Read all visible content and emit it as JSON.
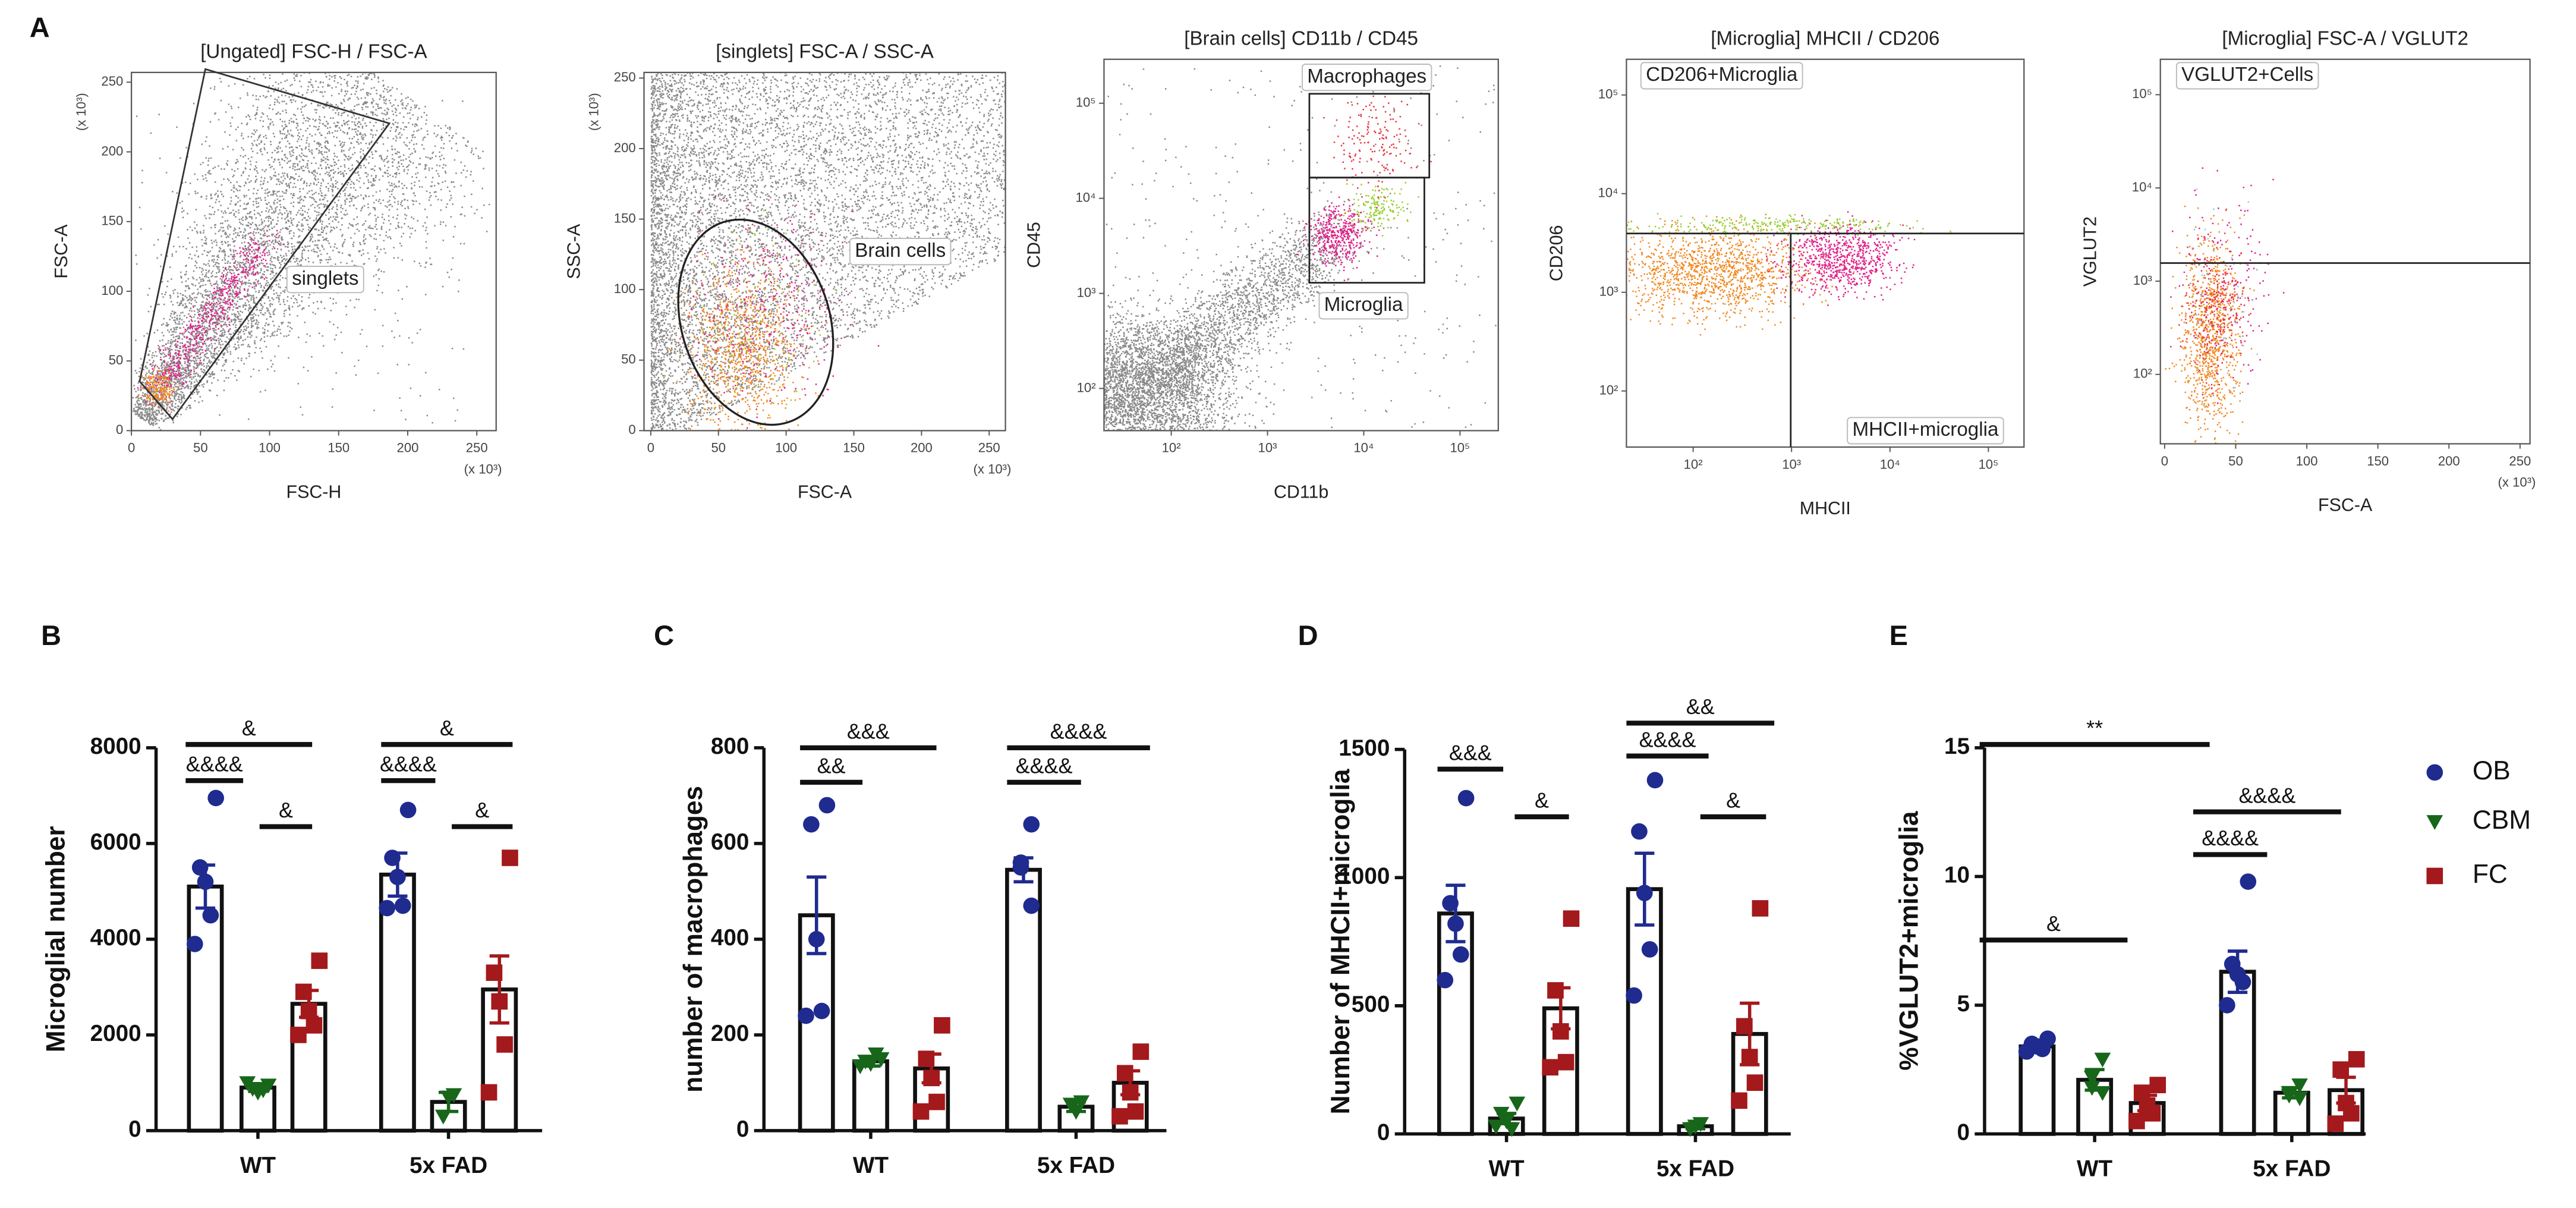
{
  "panel_labels": [
    "A",
    "B",
    "C",
    "D",
    "E"
  ],
  "legend": [
    {
      "name": "OB",
      "color": "#1f2b8f",
      "marker": "circle"
    },
    {
      "name": "CBM",
      "color": "#17661a",
      "marker": "triangle"
    },
    {
      "name": "FC",
      "color": "#a3191c",
      "marker": "square"
    }
  ],
  "chart_data": [
    {
      "type": "flow",
      "title": "[Ungated] FSC-H / FSC-A",
      "xlabel": "FSC-H",
      "ylabel": "FSC-A",
      "xscale": "linear",
      "yscale": "linear",
      "xlim": [
        0,
        264
      ],
      "ylim": [
        0,
        257
      ],
      "xticks": [
        0,
        50,
        100,
        150,
        200,
        250
      ],
      "yticks": [
        0,
        50,
        100,
        150,
        200,
        250
      ],
      "x_unit": "(x 10³)",
      "y_unit": "(x 10³)",
      "gates": [
        "singlets"
      ]
    },
    {
      "type": "flow",
      "title": "[singlets] FSC-A / SSC-A",
      "xlabel": "FSC-A",
      "ylabel": "SSC-A",
      "xscale": "linear",
      "yscale": "linear",
      "xlim": [
        -5,
        262
      ],
      "ylim": [
        0,
        254
      ],
      "xticks": [
        0,
        50,
        100,
        150,
        200,
        250
      ],
      "yticks": [
        0,
        50,
        100,
        150,
        200,
        250
      ],
      "x_unit": "(x 10³)",
      "y_unit": "(x 10³)",
      "gates": [
        "Brain cells"
      ]
    },
    {
      "type": "flow",
      "title": "[Brain cells] CD11b / CD45",
      "xlabel": "CD11b",
      "ylabel": "CD45",
      "xscale": "log",
      "yscale": "log",
      "xlim": [
        20,
        250000
      ],
      "ylim": [
        36,
        290000
      ],
      "xticks": [
        {
          "value": 100,
          "label": "10²"
        },
        {
          "value": 1000,
          "label": "10³"
        },
        {
          "value": 10000,
          "label": "10⁴"
        },
        {
          "value": 100000,
          "label": "10⁵"
        }
      ],
      "yticks": [
        {
          "value": 100,
          "label": "10²"
        },
        {
          "value": 1000,
          "label": "10³"
        },
        {
          "value": 10000,
          "label": "10⁴"
        },
        {
          "value": 100000,
          "label": "10⁵"
        }
      ],
      "gates": [
        "Macrophages",
        "Microglia"
      ]
    },
    {
      "type": "flow",
      "title": "[Microglia] MHCII / CD206",
      "xlabel": "MHCII",
      "ylabel": "CD206",
      "xscale": "log",
      "yscale": "log",
      "xlim": [
        21,
        230000
      ],
      "ylim": [
        27,
        230000
      ],
      "xticks": [
        {
          "value": 100,
          "label": "10²"
        },
        {
          "value": 1000,
          "label": "10³"
        },
        {
          "value": 10000,
          "label": "10⁴"
        },
        {
          "value": 100000,
          "label": "10⁵"
        }
      ],
      "yticks": [
        {
          "value": 100,
          "label": "10²"
        },
        {
          "value": 1000,
          "label": "10³"
        },
        {
          "value": 10000,
          "label": "10⁴"
        },
        {
          "value": 100000,
          "label": "10⁵"
        }
      ],
      "gates": [
        "CD206+Microglia",
        "MHCII+microglia"
      ]
    },
    {
      "type": "flow",
      "title": "[Microglia] FSC-A / VGLUT2",
      "xlabel": "FSC-A",
      "ylabel": "VGLUT2",
      "xscale": "linear",
      "yscale": "log",
      "xlim": [
        -3,
        257
      ],
      "ylim": [
        18,
        240000
      ],
      "xticks": [
        0,
        50,
        100,
        150,
        200,
        250
      ],
      "yticks": [
        {
          "value": 100,
          "label": "10²"
        },
        {
          "value": 1000,
          "label": "10³"
        },
        {
          "value": 10000,
          "label": "10⁴"
        },
        {
          "value": 100000,
          "label": "10⁵"
        }
      ],
      "x_unit": "(x 10³)",
      "gates": [
        "VGLUT2+Cells"
      ]
    },
    {
      "type": "bar",
      "ylabel": "Microglial number",
      "categories": [
        "WT",
        "5x FAD"
      ],
      "ylim": [
        0,
        8000
      ],
      "yticks": [
        0,
        2000,
        4000,
        6000,
        8000
      ],
      "series": [
        {
          "values": [
            5100,
            5350
          ],
          "errors": [
            450,
            450
          ],
          "points": [
            [
              6950,
              5500,
              5200,
              4500,
              3900
            ],
            [
              6700,
              5700,
              5300,
              4700,
              4650
            ]
          ]
        },
        {
          "values": [
            900,
            600
          ],
          "errors": [
            80,
            200
          ],
          "points": [
            [
              950,
              880,
              800,
              850,
              1000
            ],
            [
              750,
              700,
              300
            ]
          ]
        },
        {
          "values": [
            2650,
            2950
          ],
          "errors": [
            280,
            700
          ],
          "points": [
            [
              3550,
              2900,
              2500,
              2200,
              2000
            ],
            [
              5700,
              3300,
              2700,
              1800,
              800
            ]
          ]
        }
      ],
      "annotations": [
        "&",
        "&&&&",
        "&",
        "&",
        "&&&&",
        "&"
      ]
    },
    {
      "type": "bar",
      "ylabel": "number of  macrophages",
      "categories": [
        "WT",
        "5x FAD"
      ],
      "ylim": [
        0,
        800
      ],
      "yticks": [
        0,
        200,
        400,
        600,
        800
      ],
      "series": [
        {
          "values": [
            450,
            545
          ],
          "errors": [
            80,
            25
          ],
          "points": [
            [
              680,
              640,
              400,
              250,
              240
            ],
            [
              640,
              560,
              550,
              470
            ]
          ]
        },
        {
          "values": [
            145,
            50
          ],
          "errors": [
            10,
            10
          ],
          "points": [
            [
              150,
              145,
              140,
              160,
              135
            ],
            [
              60,
              40,
              55
            ]
          ]
        },
        {
          "values": [
            130,
            100
          ],
          "errors": [
            30,
            25
          ],
          "points": [
            [
              220,
              150,
              110,
              60,
              40
            ],
            [
              165,
              120,
              80,
              40,
              30
            ]
          ]
        }
      ],
      "annotations": [
        "&&&",
        "&&",
        "&&&&",
        "&&&&"
      ]
    },
    {
      "type": "bar",
      "ylabel": "Number of MHCII+microglia",
      "categories": [
        "WT",
        "5x FAD"
      ],
      "ylim": [
        0,
        1500
      ],
      "yticks": [
        0,
        500,
        1000,
        1500
      ],
      "series": [
        {
          "values": [
            860,
            955
          ],
          "errors": [
            110,
            140
          ],
          "points": [
            [
              1310,
              900,
              820,
              700,
              600
            ],
            [
              1380,
              1180,
              940,
              720,
              540
            ]
          ]
        },
        {
          "values": [
            60,
            30
          ],
          "errors": [
            20,
            10
          ],
          "points": [
            [
              120,
              80,
              50,
              20,
              30
            ],
            [
              40,
              30,
              20
            ]
          ]
        },
        {
          "values": [
            490,
            390
          ],
          "errors": [
            80,
            120
          ],
          "points": [
            [
              840,
              560,
              400,
              280,
              260
            ],
            [
              880,
              420,
              300,
              200,
              130
            ]
          ]
        }
      ],
      "annotations": [
        "&&&",
        "&",
        "&&",
        "&&&&",
        "&"
      ]
    },
    {
      "type": "bar",
      "ylabel": "%VGLUT2+microglia",
      "categories": [
        "WT",
        "5x FAD"
      ],
      "ylim": [
        0,
        15
      ],
      "yticks": [
        0,
        5,
        10,
        15
      ],
      "series": [
        {
          "values": [
            3.4,
            6.3
          ],
          "errors": [
            0.1,
            0.8
          ],
          "points": [
            [
              3.7,
              3.5,
              3.4,
              3.3,
              3.2
            ],
            [
              9.8,
              6.6,
              6.2,
              5.9,
              5.0
            ]
          ]
        },
        {
          "values": [
            2.1,
            1.6
          ],
          "errors": [
            0.4,
            0.2
          ],
          "points": [
            [
              2.9,
              2.2,
              1.8,
              1.6
            ],
            [
              1.9,
              1.6,
              1.5,
              1.4
            ]
          ]
        },
        {
          "values": [
            1.2,
            1.7
          ],
          "errors": [
            0.3,
            0.5
          ],
          "points": [
            [
              1.9,
              1.6,
              1.1,
              0.8,
              0.5
            ],
            [
              2.9,
              2.5,
              1.2,
              0.8,
              0.4
            ]
          ]
        }
      ],
      "annotations": [
        "**",
        "&",
        "&&&&",
        "&&&&"
      ]
    }
  ]
}
